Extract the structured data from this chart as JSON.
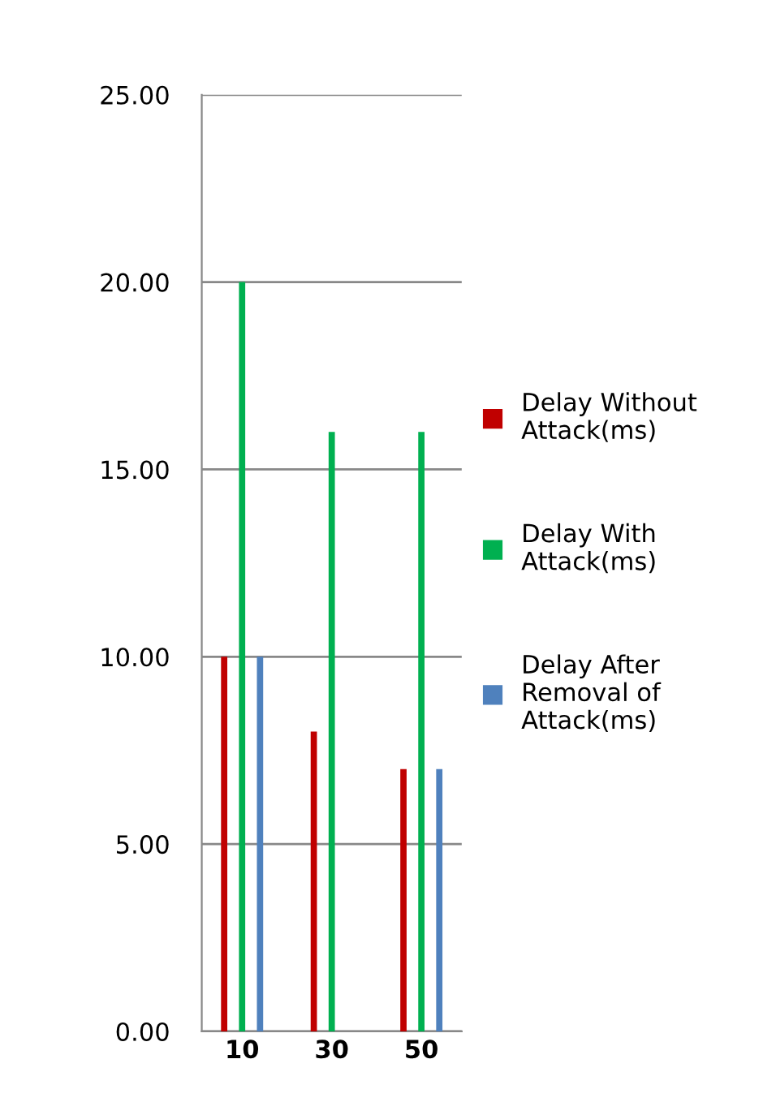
{
  "chart_data": {
    "type": "bar",
    "categories": [
      "10",
      "30",
      "50"
    ],
    "series": [
      {
        "name": "Delay Without Attack(ms)",
        "color": "#c00000",
        "values": [
          10,
          8,
          7
        ]
      },
      {
        "name": "Delay With Attack(ms)",
        "color": "#00b050",
        "values": [
          20,
          16,
          16
        ]
      },
      {
        "name": "Delay After Removal of Attack(ms)",
        "color": "#4f81bd",
        "values": [
          10,
          null,
          7
        ]
      }
    ],
    "ylim": [
      0,
      25
    ],
    "yticks": [
      {
        "value": 0,
        "label": "0.00"
      },
      {
        "value": 5,
        "label": "5.00"
      },
      {
        "value": 10,
        "label": "10.00"
      },
      {
        "value": 15,
        "label": "15.00"
      },
      {
        "value": 20,
        "label": "20.00"
      },
      {
        "value": 25,
        "label": "25.00"
      }
    ],
    "grid": "y",
    "legend": "right"
  }
}
